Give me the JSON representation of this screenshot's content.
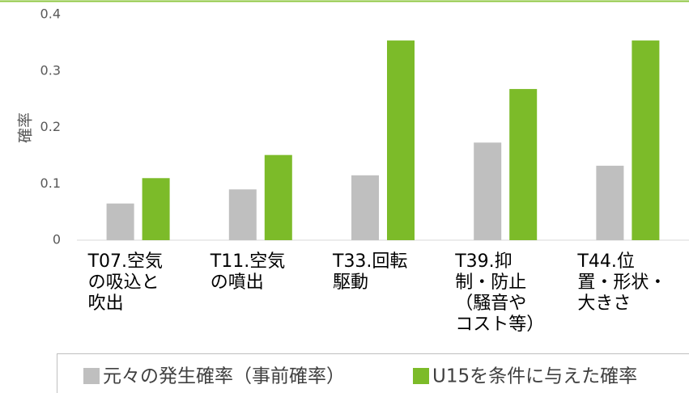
{
  "chart_data": {
    "type": "bar",
    "y_label": "確率",
    "categories": [
      [
        "T07.空気",
        "の吸込と",
        "吹出"
      ],
      [
        "T11.空気",
        "の噴出"
      ],
      [
        "T33.回転",
        "駆動"
      ],
      [
        "T39.抑",
        "制・防止",
        "（騒音や",
        "コスト等）"
      ],
      [
        "T44.位",
        "置・形状・",
        "大きさ"
      ]
    ],
    "series": [
      {
        "name": "元々の発生確率（事前確率）",
        "color": "#bfbfbf",
        "values": [
          0.065,
          0.09,
          0.115,
          0.173,
          0.132
        ]
      },
      {
        "name": "U15を条件に与えた確率",
        "color": "#7cbb29",
        "values": [
          0.11,
          0.151,
          0.354,
          0.268,
          0.354
        ]
      }
    ],
    "ylim": [
      0,
      0.4
    ],
    "yticks": [
      0,
      0.1,
      0.2,
      0.3,
      0.4
    ],
    "grid": false,
    "legend": "bottom"
  }
}
